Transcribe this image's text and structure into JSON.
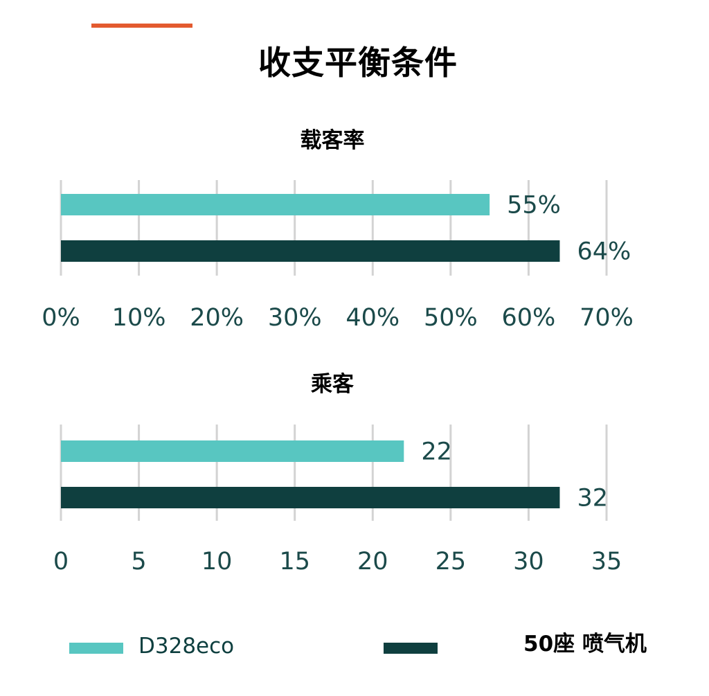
{
  "title": "收支平衡条件",
  "colors": {
    "accent": "#e35a2f",
    "d328eco": "#58c6c1",
    "jet": "#0f3f3f",
    "grid": "#d3d3d3",
    "tick_text": "#1b4a4a"
  },
  "legend": [
    {
      "label": "D328eco",
      "color": "#58c6c1"
    },
    {
      "label": "50座 喷气机",
      "color": "#0f3f3f"
    }
  ],
  "chart_data": [
    {
      "type": "bar",
      "orientation": "horizontal",
      "title": "载客率",
      "series": [
        {
          "name": "D328eco",
          "values": [
            55
          ],
          "label": "55%"
        },
        {
          "name": "50座 喷气机",
          "values": [
            64
          ],
          "label": "64%"
        }
      ],
      "xlim": [
        0,
        70
      ],
      "ticks": [
        "0%",
        "10%",
        "20%",
        "30%",
        "40%",
        "50%",
        "60%",
        "70%"
      ],
      "tick_values": [
        0,
        10,
        20,
        30,
        40,
        50,
        60,
        70
      ],
      "grid": true
    },
    {
      "type": "bar",
      "orientation": "horizontal",
      "title": "乘客",
      "series": [
        {
          "name": "D328eco",
          "values": [
            22
          ],
          "label": "22"
        },
        {
          "name": "50座 喷气机",
          "values": [
            32
          ],
          "label": "32"
        }
      ],
      "xlim": [
        0,
        35
      ],
      "ticks": [
        "0",
        "5",
        "10",
        "15",
        "20",
        "25",
        "30",
        "35"
      ],
      "tick_values": [
        0,
        5,
        10,
        15,
        20,
        25,
        30,
        35
      ],
      "grid": true
    }
  ]
}
